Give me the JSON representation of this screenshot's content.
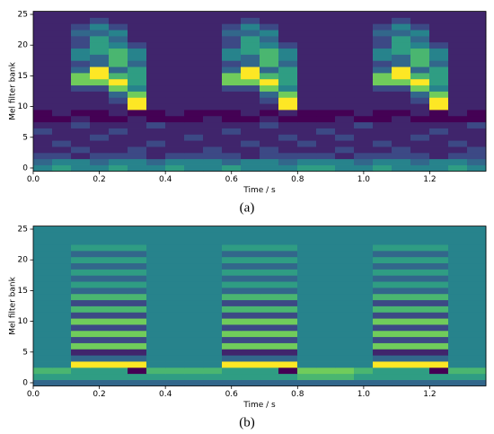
{
  "chart_data": [
    {
      "type": "heatmap",
      "label": "(a)",
      "ylabel": "Mel filter bank",
      "xlabel": "Time / s",
      "colormap": "viridis",
      "xlim": [
        0,
        1.37
      ],
      "ylim": [
        -0.5,
        25.5
      ],
      "xticks": [
        {
          "value": 0,
          "label": "0.0"
        },
        0.2,
        0.4,
        0.6,
        0.8,
        {
          "value": 1,
          "label": "1.0"
        },
        1.2
      ],
      "yticks": [
        0,
        5,
        10,
        15,
        20,
        25
      ],
      "z": [
        [
          4,
          5,
          4,
          4,
          5,
          4,
          4,
          5,
          4,
          4,
          5,
          4,
          4,
          4,
          5,
          5,
          4,
          4,
          5,
          4,
          4,
          4,
          5,
          4
        ],
        [
          3,
          4,
          4,
          3,
          4,
          4,
          3,
          4,
          4,
          4,
          3,
          4,
          4,
          3,
          4,
          4,
          4,
          3,
          4,
          4,
          3,
          4,
          4,
          3
        ],
        [
          2,
          2,
          1,
          2,
          2,
          2,
          1,
          2,
          2,
          2,
          2,
          1,
          2,
          2,
          2,
          2,
          1,
          2,
          2,
          2,
          2,
          1,
          2,
          2
        ],
        [
          1,
          1,
          2,
          1,
          1,
          2,
          1,
          1,
          1,
          2,
          1,
          1,
          2,
          1,
          1,
          1,
          2,
          1,
          1,
          2,
          1,
          1,
          1,
          2
        ],
        [
          1,
          2,
          1,
          1,
          1,
          1,
          2,
          1,
          1,
          1,
          1,
          2,
          1,
          1,
          2,
          1,
          1,
          1,
          2,
          1,
          1,
          1,
          2,
          1
        ],
        [
          1,
          1,
          1,
          2,
          1,
          1,
          1,
          1,
          2,
          1,
          1,
          1,
          1,
          2,
          1,
          1,
          2,
          1,
          1,
          1,
          2,
          1,
          1,
          1
        ],
        [
          2,
          1,
          1,
          1,
          2,
          1,
          1,
          1,
          1,
          1,
          2,
          1,
          1,
          1,
          1,
          2,
          1,
          1,
          1,
          1,
          1,
          2,
          1,
          1
        ],
        [
          1,
          1,
          2,
          1,
          1,
          1,
          2,
          1,
          1,
          1,
          1,
          1,
          2,
          1,
          1,
          1,
          1,
          2,
          1,
          1,
          1,
          1,
          1,
          2
        ],
        [
          0,
          0,
          1,
          0,
          0,
          1,
          0,
          0,
          0,
          1,
          0,
          0,
          1,
          0,
          0,
          0,
          1,
          0,
          0,
          1,
          0,
          0,
          0,
          0
        ],
        [
          0,
          1,
          0,
          0,
          1,
          0,
          0,
          1,
          0,
          0,
          0,
          1,
          0,
          1,
          0,
          0,
          0,
          1,
          0,
          0,
          1,
          0,
          1,
          0
        ],
        [
          1,
          1,
          1,
          1,
          1,
          9,
          1,
          1,
          1,
          1,
          1,
          1,
          1,
          9,
          1,
          1,
          1,
          1,
          1,
          1,
          1,
          9,
          1,
          1
        ],
        [
          1,
          1,
          1,
          1,
          2,
          9,
          1,
          1,
          1,
          1,
          1,
          1,
          2,
          9,
          1,
          1,
          1,
          1,
          1,
          1,
          2,
          9,
          1,
          1
        ],
        [
          1,
          1,
          1,
          1,
          3,
          7,
          1,
          1,
          1,
          1,
          1,
          1,
          3,
          7,
          1,
          1,
          1,
          1,
          1,
          1,
          3,
          7,
          1,
          1
        ],
        [
          1,
          1,
          2,
          2,
          7,
          4,
          1,
          1,
          1,
          1,
          2,
          2,
          7,
          4,
          1,
          1,
          1,
          1,
          2,
          2,
          7,
          4,
          1,
          1
        ],
        [
          1,
          1,
          7,
          7,
          9,
          5,
          1,
          1,
          1,
          1,
          7,
          7,
          9,
          5,
          1,
          1,
          1,
          1,
          7,
          7,
          9,
          5,
          1,
          1
        ],
        [
          1,
          1,
          7,
          9,
          6,
          5,
          1,
          1,
          1,
          1,
          7,
          9,
          6,
          5,
          1,
          1,
          1,
          1,
          7,
          9,
          6,
          5,
          1,
          1
        ],
        [
          1,
          1,
          3,
          9,
          3,
          5,
          1,
          1,
          1,
          1,
          3,
          9,
          3,
          5,
          1,
          1,
          1,
          1,
          3,
          9,
          3,
          5,
          1,
          1
        ],
        [
          1,
          1,
          2,
          3,
          6,
          3,
          1,
          1,
          1,
          1,
          2,
          3,
          6,
          3,
          1,
          1,
          1,
          1,
          2,
          3,
          6,
          3,
          1,
          1
        ],
        [
          1,
          1,
          4,
          3,
          6,
          4,
          1,
          1,
          1,
          1,
          4,
          3,
          6,
          4,
          1,
          1,
          1,
          1,
          4,
          3,
          6,
          4,
          1,
          1
        ],
        [
          1,
          1,
          4,
          5,
          6,
          4,
          1,
          1,
          1,
          1,
          4,
          5,
          6,
          4,
          1,
          1,
          1,
          1,
          4,
          5,
          6,
          4,
          1,
          1
        ],
        [
          1,
          1,
          2,
          5,
          4,
          2,
          1,
          1,
          1,
          1,
          2,
          5,
          4,
          2,
          1,
          1,
          1,
          1,
          2,
          5,
          4,
          2,
          1,
          1
        ],
        [
          1,
          1,
          2,
          5,
          3,
          1,
          1,
          1,
          1,
          1,
          2,
          5,
          3,
          1,
          1,
          1,
          1,
          1,
          2,
          5,
          3,
          1,
          1,
          1
        ],
        [
          1,
          1,
          3,
          3,
          4,
          1,
          1,
          1,
          1,
          1,
          3,
          3,
          4,
          1,
          1,
          1,
          1,
          1,
          3,
          3,
          4,
          1,
          1,
          1
        ],
        [
          1,
          1,
          2,
          4,
          2,
          1,
          1,
          1,
          1,
          1,
          2,
          4,
          2,
          1,
          1,
          1,
          1,
          1,
          2,
          4,
          2,
          1,
          1,
          1
        ],
        [
          1,
          1,
          1,
          2,
          1,
          1,
          1,
          1,
          1,
          1,
          1,
          2,
          1,
          1,
          1,
          1,
          1,
          1,
          1,
          2,
          1,
          1,
          1,
          1
        ],
        [
          1,
          1,
          1,
          1,
          1,
          1,
          1,
          1,
          1,
          1,
          1,
          1,
          1,
          1,
          1,
          1,
          1,
          1,
          1,
          1,
          1,
          1,
          1,
          1
        ]
      ]
    },
    {
      "type": "heatmap",
      "label": "(b)",
      "ylabel": "Mel filter bank",
      "xlabel": "Time / s",
      "colormap": "viridis",
      "xlim": [
        0,
        1.37
      ],
      "ylim": [
        -0.5,
        25.5
      ],
      "xticks": [
        {
          "value": 0,
          "label": "0.0"
        },
        0.2,
        0.4,
        0.6,
        0.8,
        {
          "value": 1,
          "label": "1.0"
        },
        1.2
      ],
      "yticks": [
        0,
        5,
        10,
        15,
        20,
        25
      ],
      "z": [
        [
          3,
          3,
          3,
          3,
          3,
          3,
          3,
          3,
          3,
          3,
          3,
          3,
          3,
          3,
          3,
          3,
          3,
          3,
          3,
          3,
          3,
          3,
          3,
          3
        ],
        [
          5,
          5,
          5,
          5,
          5,
          5,
          5,
          5,
          5,
          5,
          5,
          5,
          5,
          5,
          6,
          6,
          6,
          5,
          5,
          5,
          5,
          5,
          5,
          5
        ],
        [
          6,
          6,
          5,
          5,
          5,
          0,
          6,
          6,
          6,
          6,
          5,
          5,
          5,
          0,
          7,
          7,
          7,
          6,
          5,
          5,
          5,
          0,
          6,
          6
        ],
        [
          4,
          4,
          9,
          9,
          9,
          9,
          4,
          4,
          4,
          4,
          9,
          9,
          9,
          9,
          4,
          4,
          4,
          4,
          9,
          9,
          9,
          9,
          4,
          4
        ],
        [
          4,
          4,
          3,
          3,
          3,
          3,
          4,
          4,
          4,
          4,
          3,
          3,
          3,
          3,
          4,
          4,
          4,
          4,
          3,
          3,
          3,
          3,
          4,
          4
        ],
        [
          4,
          4,
          1,
          1,
          1,
          1,
          4,
          4,
          4,
          4,
          1,
          1,
          1,
          1,
          4,
          4,
          4,
          4,
          1,
          1,
          1,
          1,
          4,
          4
        ],
        [
          4,
          4,
          7,
          7,
          7,
          7,
          4,
          4,
          4,
          4,
          7,
          7,
          7,
          7,
          4,
          4,
          4,
          4,
          7,
          7,
          7,
          7,
          4,
          4
        ],
        [
          4,
          4,
          2,
          2,
          2,
          2,
          4,
          4,
          4,
          4,
          2,
          2,
          2,
          2,
          4,
          4,
          4,
          4,
          2,
          2,
          2,
          2,
          4,
          4
        ],
        [
          4,
          4,
          7,
          7,
          7,
          7,
          4,
          4,
          4,
          4,
          7,
          7,
          7,
          7,
          4,
          4,
          4,
          4,
          7,
          7,
          7,
          7,
          4,
          4
        ],
        [
          4,
          4,
          2,
          2,
          2,
          2,
          4,
          4,
          4,
          4,
          2,
          2,
          2,
          2,
          4,
          4,
          4,
          4,
          2,
          2,
          2,
          2,
          4,
          4
        ],
        [
          4,
          4,
          7,
          7,
          7,
          7,
          4,
          4,
          4,
          4,
          7,
          7,
          7,
          7,
          4,
          4,
          4,
          4,
          7,
          7,
          7,
          7,
          4,
          4
        ],
        [
          4,
          4,
          2,
          2,
          2,
          2,
          4,
          4,
          4,
          4,
          2,
          2,
          2,
          2,
          4,
          4,
          4,
          4,
          2,
          2,
          2,
          2,
          4,
          4
        ],
        [
          4,
          4,
          6,
          6,
          6,
          6,
          4,
          4,
          4,
          4,
          6,
          6,
          6,
          6,
          4,
          4,
          4,
          4,
          6,
          6,
          6,
          6,
          4,
          4
        ],
        [
          4,
          4,
          2,
          2,
          2,
          2,
          4,
          4,
          4,
          4,
          2,
          2,
          2,
          2,
          4,
          4,
          4,
          4,
          2,
          2,
          2,
          2,
          4,
          4
        ],
        [
          4,
          4,
          6,
          6,
          6,
          6,
          4,
          4,
          4,
          4,
          6,
          6,
          6,
          6,
          4,
          4,
          4,
          4,
          6,
          6,
          6,
          6,
          4,
          4
        ],
        [
          4,
          4,
          3,
          3,
          3,
          3,
          4,
          4,
          4,
          4,
          3,
          3,
          3,
          3,
          4,
          4,
          4,
          4,
          3,
          3,
          3,
          3,
          4,
          4
        ],
        [
          4,
          4,
          5,
          5,
          5,
          5,
          4,
          4,
          4,
          4,
          5,
          5,
          5,
          5,
          4,
          4,
          4,
          4,
          5,
          5,
          5,
          5,
          4,
          4
        ],
        [
          4,
          4,
          3,
          3,
          3,
          3,
          4,
          4,
          4,
          4,
          3,
          3,
          3,
          3,
          4,
          4,
          4,
          4,
          3,
          3,
          3,
          3,
          4,
          4
        ],
        [
          4,
          4,
          5,
          5,
          5,
          5,
          4,
          4,
          4,
          4,
          5,
          5,
          5,
          5,
          4,
          4,
          4,
          4,
          5,
          5,
          5,
          5,
          4,
          4
        ],
        [
          4,
          4,
          3,
          3,
          3,
          3,
          4,
          4,
          4,
          4,
          3,
          3,
          3,
          3,
          4,
          4,
          4,
          4,
          3,
          3,
          3,
          3,
          4,
          4
        ],
        [
          4,
          4,
          5,
          5,
          5,
          5,
          4,
          4,
          4,
          4,
          5,
          5,
          5,
          5,
          4,
          4,
          4,
          4,
          5,
          5,
          5,
          5,
          4,
          4
        ],
        [
          4,
          4,
          3,
          3,
          3,
          3,
          4,
          4,
          4,
          4,
          3,
          3,
          3,
          3,
          4,
          4,
          4,
          4,
          3,
          3,
          3,
          3,
          4,
          4
        ],
        [
          4,
          4,
          5,
          5,
          5,
          5,
          4,
          4,
          4,
          4,
          5,
          5,
          5,
          5,
          4,
          4,
          4,
          4,
          5,
          5,
          5,
          5,
          4,
          4
        ],
        [
          4,
          4,
          4,
          4,
          4,
          4,
          4,
          4,
          4,
          4,
          4,
          4,
          4,
          4,
          4,
          4,
          4,
          4,
          4,
          4,
          4,
          4,
          4,
          4
        ],
        [
          4,
          4,
          4,
          4,
          4,
          4,
          4,
          4,
          4,
          4,
          4,
          4,
          4,
          4,
          4,
          4,
          4,
          4,
          4,
          4,
          4,
          4,
          4,
          4
        ],
        [
          4,
          4,
          4,
          4,
          4,
          4,
          4,
          4,
          4,
          4,
          4,
          4,
          4,
          4,
          4,
          4,
          4,
          4,
          4,
          4,
          4,
          4,
          4,
          4
        ]
      ]
    }
  ]
}
